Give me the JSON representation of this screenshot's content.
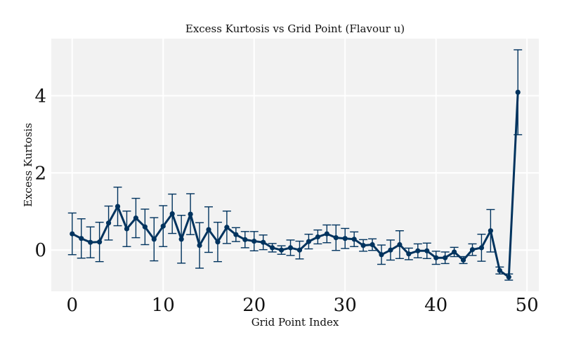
{
  "chart_data": {
    "type": "line",
    "title": "Excess Kurtosis vs Grid Point (Flavour u)",
    "xlabel": "Grid Point Index",
    "ylabel": "Excess Kurtosis",
    "xlim": [
      -2.3,
      51.3
    ],
    "ylim": [
      -1.07,
      5.48
    ],
    "xticks": [
      0,
      10,
      20,
      30,
      40,
      50
    ],
    "yticks": [
      0,
      2,
      4
    ],
    "grid": true,
    "color": "#00335e",
    "background": "#f2f2f2",
    "x": [
      0,
      1,
      2,
      3,
      4,
      5,
      6,
      7,
      8,
      9,
      10,
      11,
      12,
      13,
      14,
      15,
      16,
      17,
      18,
      19,
      20,
      21,
      22,
      23,
      24,
      25,
      26,
      27,
      28,
      29,
      30,
      31,
      32,
      33,
      34,
      35,
      36,
      37,
      38,
      39,
      40,
      41,
      42,
      43,
      44,
      45,
      46,
      47,
      48,
      49
    ],
    "y": [
      0.42,
      0.3,
      0.2,
      0.21,
      0.7,
      1.13,
      0.55,
      0.83,
      0.6,
      0.28,
      0.62,
      0.94,
      0.28,
      0.93,
      0.12,
      0.53,
      0.21,
      0.59,
      0.4,
      0.27,
      0.23,
      0.2,
      0.06,
      0.0,
      0.06,
      0.0,
      0.22,
      0.34,
      0.42,
      0.32,
      0.3,
      0.28,
      0.12,
      0.14,
      -0.12,
      0.0,
      0.14,
      -0.1,
      -0.02,
      -0.02,
      -0.2,
      -0.2,
      -0.05,
      -0.26,
      0.01,
      0.06,
      0.5,
      -0.53,
      -0.7,
      4.09
    ],
    "yerr": [
      0.54,
      0.51,
      0.4,
      0.51,
      0.44,
      0.5,
      0.46,
      0.51,
      0.46,
      0.56,
      0.53,
      0.51,
      0.62,
      0.53,
      0.59,
      0.59,
      0.51,
      0.42,
      0.18,
      0.21,
      0.25,
      0.19,
      0.11,
      0.11,
      0.2,
      0.23,
      0.19,
      0.18,
      0.23,
      0.33,
      0.26,
      0.19,
      0.15,
      0.15,
      0.25,
      0.26,
      0.36,
      0.15,
      0.18,
      0.2,
      0.17,
      0.15,
      0.12,
      0.09,
      0.15,
      0.35,
      0.55,
      0.09,
      0.08,
      1.1
    ]
  }
}
